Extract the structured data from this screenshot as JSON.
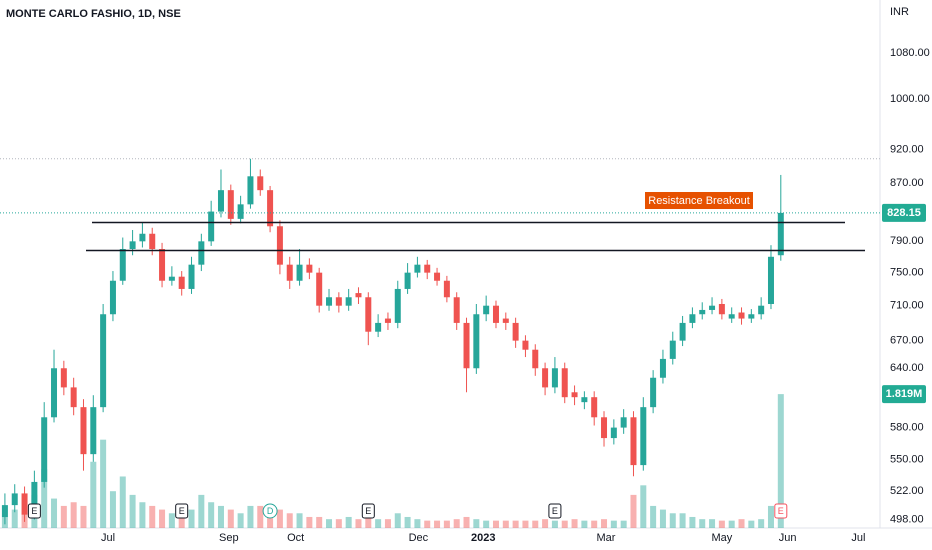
{
  "chart_data": {
    "type": "candlestick",
    "title": "MONTE CARLO FASHIO, 1D, NSE",
    "currency": "INR",
    "log_scale": true,
    "grid": false,
    "ylim": [
      491,
      1179
    ],
    "yticks": [
      {
        "value": 1080,
        "label": "1080.00"
      },
      {
        "value": 1000,
        "label": "1000.00"
      },
      {
        "value": 920,
        "label": "920.00"
      },
      {
        "value": 870,
        "label": "870.00"
      },
      {
        "value": 790,
        "label": "790.00"
      },
      {
        "value": 750,
        "label": "750.00"
      },
      {
        "value": 710,
        "label": "710.00"
      },
      {
        "value": 670,
        "label": "670.00"
      },
      {
        "value": 640,
        "label": "640.00"
      },
      {
        "value": 580,
        "label": "580.00"
      },
      {
        "value": 550,
        "label": "550.00"
      },
      {
        "value": 522,
        "label": "522.00"
      },
      {
        "value": 498,
        "label": "498.00"
      }
    ],
    "xlim": [
      -0.5,
      89.1
    ],
    "xticks": [
      {
        "value": 10.5,
        "label": "Jul"
      },
      {
        "value": 22.8,
        "label": "Sep"
      },
      {
        "value": 29.6,
        "label": "Oct"
      },
      {
        "value": 42.1,
        "label": "Dec"
      },
      {
        "value": 48.7,
        "label": "2023"
      },
      {
        "value": 61.2,
        "label": "Mar"
      },
      {
        "value": 73.0,
        "label": "May"
      },
      {
        "value": 79.7,
        "label": "Jun"
      },
      {
        "value": 86.9,
        "label": "Jul"
      }
    ],
    "up_color": "#26a69a",
    "down_color": "#ef5350",
    "open": [
      500,
      510,
      520,
      502,
      530,
      590,
      640,
      620,
      600,
      555,
      600,
      700,
      740,
      780,
      790,
      800,
      780,
      740,
      745,
      730,
      760,
      790,
      830,
      860,
      820,
      840,
      880,
      860,
      810,
      760,
      740,
      760,
      750,
      710,
      720,
      710,
      725,
      720,
      680,
      695,
      690,
      730,
      750,
      760,
      750,
      740,
      720,
      690,
      640,
      700,
      710,
      695,
      690,
      670,
      660,
      640,
      620,
      640,
      615,
      605,
      610,
      590,
      570,
      580,
      590,
      545,
      600,
      630,
      650,
      670,
      690,
      700,
      705,
      712,
      695,
      702,
      695,
      700,
      712,
      772
    ],
    "high": [
      520,
      528,
      526,
      540,
      605,
      660,
      648,
      630,
      608,
      612,
      712,
      752,
      795,
      805,
      815,
      808,
      788,
      758,
      752,
      770,
      800,
      845,
      890,
      868,
      852,
      906,
      890,
      866,
      818,
      770,
      780,
      768,
      756,
      730,
      726,
      730,
      732,
      726,
      700,
      702,
      740,
      762,
      770,
      766,
      756,
      746,
      726,
      696,
      712,
      722,
      716,
      702,
      696,
      676,
      666,
      646,
      652,
      646,
      622,
      616,
      616,
      596,
      588,
      598,
      596,
      610,
      638,
      660,
      680,
      698,
      708,
      714,
      720,
      718,
      708,
      708,
      706,
      720,
      785,
      882
    ],
    "low": [
      494,
      504,
      496,
      498,
      525,
      585,
      612,
      592,
      540,
      548,
      595,
      692,
      735,
      772,
      782,
      772,
      732,
      734,
      722,
      724,
      752,
      784,
      822,
      812,
      814,
      834,
      852,
      802,
      748,
      730,
      734,
      742,
      702,
      704,
      702,
      704,
      712,
      665,
      674,
      682,
      684,
      724,
      744,
      742,
      734,
      714,
      682,
      615,
      634,
      692,
      684,
      682,
      662,
      652,
      632,
      612,
      614,
      604,
      602,
      598,
      582,
      562,
      564,
      574,
      535,
      540,
      594,
      624,
      644,
      664,
      684,
      694,
      700,
      694,
      690,
      688,
      690,
      694,
      706,
      765
    ],
    "close": [
      510,
      520,
      502,
      530,
      590,
      640,
      620,
      600,
      555,
      600,
      700,
      740,
      780,
      790,
      800,
      780,
      740,
      745,
      730,
      760,
      790,
      830,
      860,
      820,
      840,
      880,
      860,
      810,
      760,
      740,
      760,
      750,
      710,
      720,
      710,
      720,
      720,
      680,
      690,
      690,
      730,
      750,
      760,
      750,
      740,
      720,
      690,
      640,
      700,
      710,
      690,
      690,
      670,
      660,
      640,
      620,
      640,
      610,
      610,
      610,
      590,
      570,
      580,
      590,
      545,
      600,
      630,
      650,
      670,
      690,
      700,
      705,
      710,
      700,
      700,
      695,
      700,
      710,
      770,
      828.15
    ],
    "volume": [
      0.15,
      0.25,
      0.2,
      0.45,
      0.8,
      0.4,
      0.3,
      0.35,
      0.3,
      0.9,
      1.2,
      0.5,
      0.7,
      0.45,
      0.35,
      0.3,
      0.25,
      0.2,
      0.2,
      0.25,
      0.45,
      0.35,
      0.3,
      0.25,
      0.2,
      0.3,
      0.3,
      0.2,
      0.25,
      0.2,
      0.2,
      0.15,
      0.15,
      0.12,
      0.12,
      0.15,
      0.12,
      0.15,
      0.12,
      0.12,
      0.2,
      0.15,
      0.12,
      0.1,
      0.1,
      0.1,
      0.12,
      0.15,
      0.12,
      0.1,
      0.1,
      0.1,
      0.1,
      0.1,
      0.1,
      0.12,
      0.1,
      0.1,
      0.12,
      0.1,
      0.1,
      0.12,
      0.1,
      0.1,
      0.45,
      0.58,
      0.3,
      0.25,
      0.2,
      0.2,
      0.15,
      0.12,
      0.12,
      0.1,
      0.1,
      0.12,
      0.1,
      0.12,
      0.3,
      1.819
    ],
    "vlim": [
      0,
      2.5
    ],
    "last_volume_label": "1.819M",
    "last_price": 828.15,
    "period_high_line": 906,
    "levels": [
      815,
      778
    ],
    "annotation": "Resistance Breakout",
    "events": {
      "labels": [
        "E",
        "E",
        "D",
        "E",
        "E",
        "E"
      ],
      "x": [
        3,
        18,
        27,
        37,
        56,
        79
      ]
    }
  }
}
